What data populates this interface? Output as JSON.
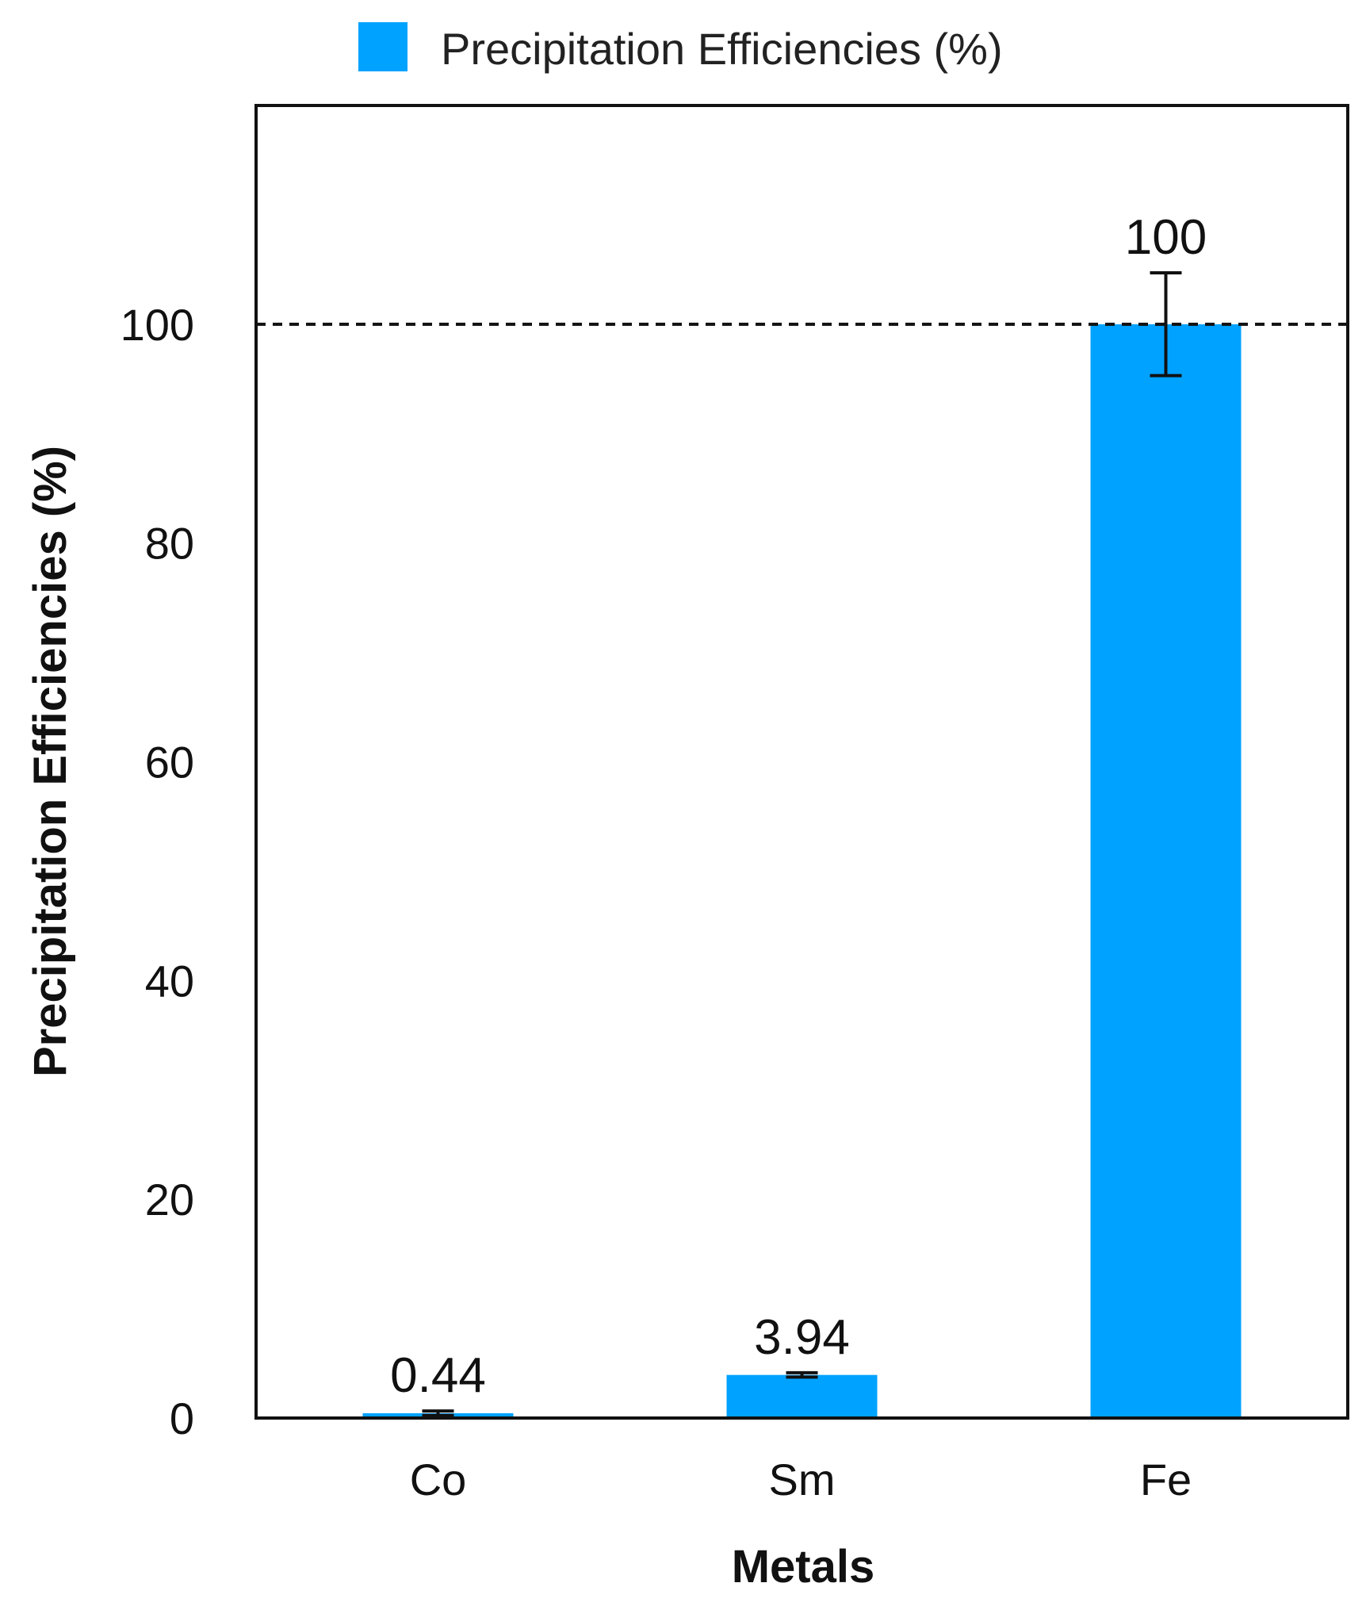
{
  "chart_data": {
    "type": "bar",
    "categories": [
      "Co",
      "Sm",
      "Fe"
    ],
    "series": [
      {
        "name": "Precipitation Efficiencies (%)",
        "values": [
          0.44,
          3.94,
          100
        ],
        "data_labels": [
          "0.44",
          "3.94",
          "100"
        ],
        "error": [
          0.2,
          0.2,
          4.7
        ]
      }
    ],
    "xlabel": "Metals",
    "ylabel": "Precipitation Efficiencies (%)",
    "ylim": [
      0,
      120
    ],
    "yticks": [
      0,
      20,
      40,
      60,
      80,
      100
    ],
    "ytick_labels": [
      "0",
      "20",
      "40",
      "60",
      "80",
      "100"
    ],
    "reference_line": 100,
    "grid": false,
    "legend_position": "top-center",
    "colors": {
      "bar": "#00A2FF",
      "axis": "#111111"
    }
  }
}
